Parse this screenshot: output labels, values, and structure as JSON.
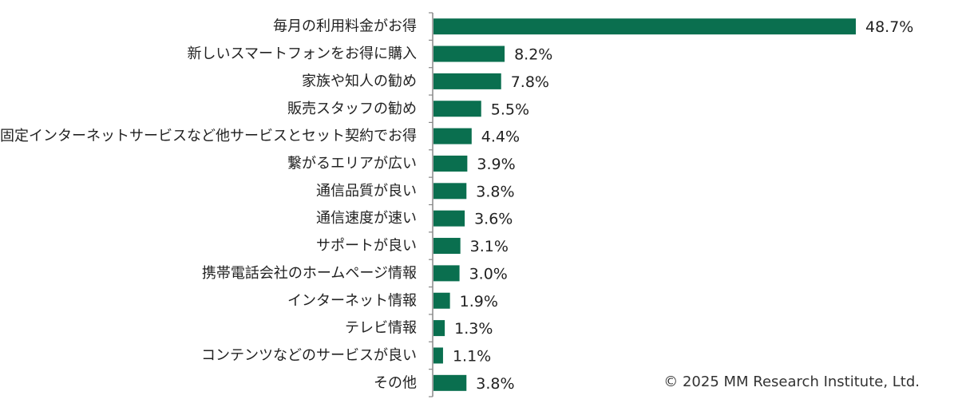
{
  "copyright": "© 2025 MM Research Institute, Ltd.",
  "colors": {
    "bar": "#0a6f4f",
    "axis": "#888888"
  },
  "chart_data": {
    "type": "bar",
    "orientation": "horizontal",
    "categories": [
      "毎月の利用料金がお得",
      "新しいスマートフォンをお得に購入",
      "家族や知人の勧め",
      "販売スタッフの勧め",
      "固定インターネットサービスなど他サービスとセット契約でお得",
      "繋がるエリアが広い",
      "通信品質が良い",
      "通信速度が速い",
      "サポートが良い",
      "携帯電話会社のホームページ情報",
      "インターネット情報",
      "テレビ情報",
      "コンテンツなどのサービスが良い",
      "その他"
    ],
    "values": [
      48.7,
      8.2,
      7.8,
      5.5,
      4.4,
      3.9,
      3.8,
      3.6,
      3.1,
      3.0,
      1.9,
      1.3,
      1.1,
      3.8
    ],
    "value_labels": [
      "48.7%",
      "8.2%",
      "7.8%",
      "5.5%",
      "4.4%",
      "3.9%",
      "3.8%",
      "3.6%",
      "3.1%",
      "3.0%",
      "1.9%",
      "1.3%",
      "1.1%",
      "3.8%"
    ],
    "xlim": [
      0,
      50
    ],
    "grid": false,
    "legend": "none"
  }
}
